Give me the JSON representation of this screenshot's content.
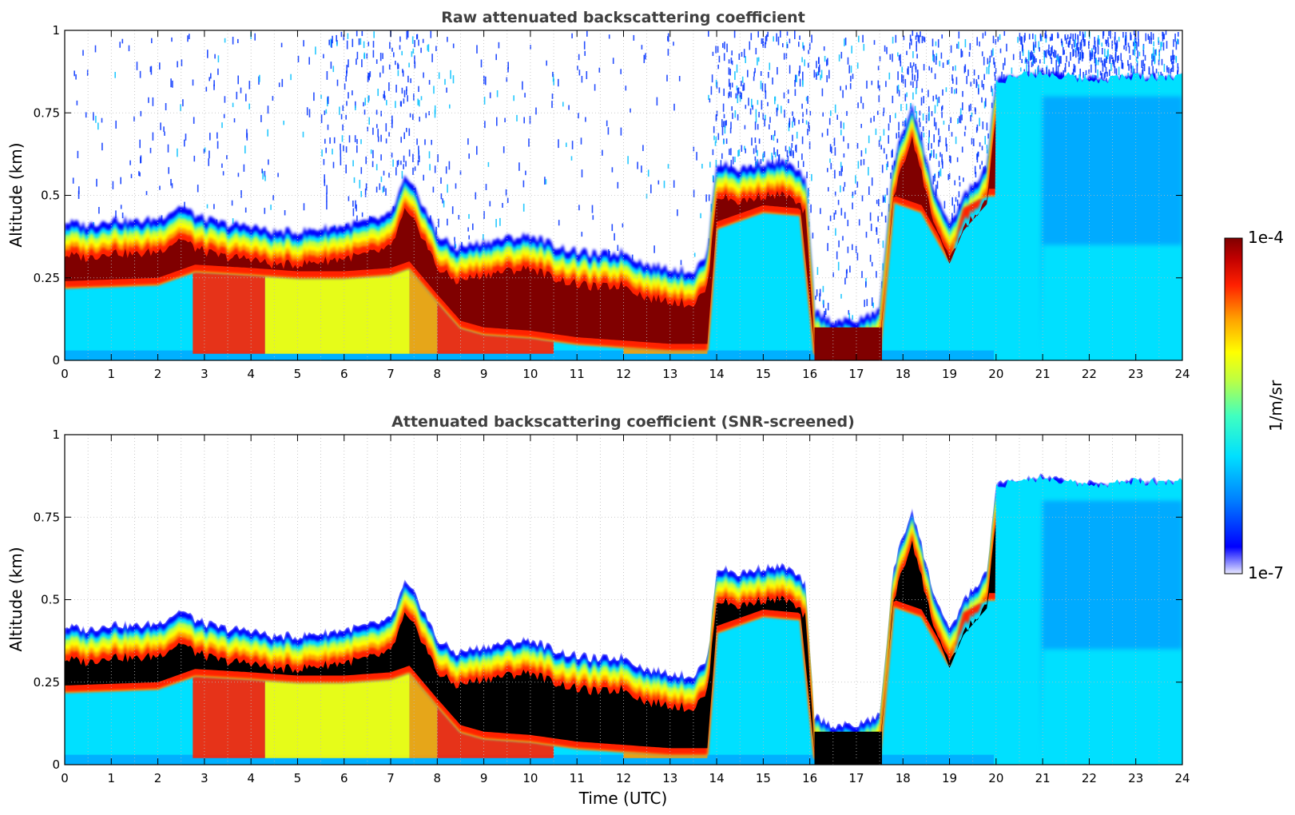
{
  "chart_data": [
    {
      "type": "heatmap",
      "title": "Raw attenuated backscattering coefficient",
      "xlabel": "",
      "ylabel": "Altitude (km)",
      "xlim": [
        0,
        24
      ],
      "ylim": [
        0,
        1
      ],
      "x_ticks": [
        "0",
        "1",
        "2",
        "3",
        "4",
        "5",
        "6",
        "7",
        "8",
        "9",
        "10",
        "11",
        "12",
        "13",
        "14",
        "15",
        "16",
        "17",
        "18",
        "19",
        "20",
        "21",
        "22",
        "23",
        "24"
      ],
      "y_ticks": [
        "0",
        "0.25",
        "0.5",
        "0.75",
        "1"
      ],
      "grid": true,
      "cloud_top_km": [
        [
          0,
          0.42
        ],
        [
          0.5,
          0.41
        ],
        [
          1,
          0.43
        ],
        [
          1.5,
          0.42
        ],
        [
          2,
          0.43
        ],
        [
          2.5,
          0.47
        ],
        [
          2.8,
          0.44
        ],
        [
          3.2,
          0.42
        ],
        [
          3.6,
          0.41
        ],
        [
          4,
          0.41
        ],
        [
          4.4,
          0.39
        ],
        [
          5,
          0.39
        ],
        [
          5.5,
          0.4
        ],
        [
          6,
          0.41
        ],
        [
          6.5,
          0.42
        ],
        [
          7,
          0.44
        ],
        [
          7.3,
          0.55
        ],
        [
          7.6,
          0.5
        ],
        [
          8,
          0.38
        ],
        [
          8.4,
          0.34
        ],
        [
          9,
          0.36
        ],
        [
          9.5,
          0.37
        ],
        [
          10,
          0.38
        ],
        [
          10.5,
          0.35
        ],
        [
          11,
          0.33
        ],
        [
          11.5,
          0.32
        ],
        [
          12,
          0.33
        ],
        [
          12.5,
          0.29
        ],
        [
          13,
          0.28
        ],
        [
          13.5,
          0.27
        ],
        [
          13.8,
          0.32
        ],
        [
          14,
          0.6
        ],
        [
          14.5,
          0.58
        ],
        [
          15,
          0.6
        ],
        [
          15.5,
          0.6
        ],
        [
          15.9,
          0.55
        ],
        [
          16.1,
          0.15
        ],
        [
          16.5,
          0.12
        ],
        [
          17,
          0.12
        ],
        [
          17.5,
          0.15
        ],
        [
          17.8,
          0.6
        ],
        [
          18.2,
          0.78
        ],
        [
          18.6,
          0.55
        ],
        [
          19,
          0.4
        ],
        [
          19.3,
          0.5
        ],
        [
          19.8,
          0.58
        ],
        [
          20,
          0.85
        ],
        [
          21,
          0.87
        ],
        [
          22,
          0.85
        ],
        [
          23,
          0.86
        ],
        [
          24,
          0.86
        ]
      ],
      "cloud_base_km": [
        [
          0,
          0.22
        ],
        [
          2,
          0.23
        ],
        [
          2.8,
          0.27
        ],
        [
          4,
          0.26
        ],
        [
          5,
          0.25
        ],
        [
          6,
          0.25
        ],
        [
          7,
          0.26
        ],
        [
          7.4,
          0.28
        ],
        [
          8,
          0.18
        ],
        [
          8.5,
          0.1
        ],
        [
          9,
          0.08
        ],
        [
          10,
          0.07
        ],
        [
          10.5,
          0.06
        ],
        [
          11,
          0.05
        ],
        [
          12,
          0.04
        ],
        [
          13,
          0.03
        ],
        [
          13.8,
          0.03
        ],
        [
          14,
          0.4
        ],
        [
          15,
          0.45
        ],
        [
          15.8,
          0.44
        ],
        [
          16.1,
          0.02
        ],
        [
          17.5,
          0.02
        ],
        [
          17.8,
          0.48
        ],
        [
          18.4,
          0.45
        ],
        [
          19,
          0.3
        ],
        [
          19.3,
          0.46
        ],
        [
          19.8,
          0.5
        ],
        [
          20,
          0.5
        ]
      ]
    },
    {
      "type": "heatmap",
      "title": "Attenuated backscattering coefficient (SNR-screened)",
      "xlabel": "Time (UTC)",
      "ylabel": "Altitude (km)",
      "xlim": [
        0,
        24
      ],
      "ylim": [
        0,
        1
      ],
      "x_ticks": [
        "0",
        "1",
        "2",
        "3",
        "4",
        "5",
        "6",
        "7",
        "8",
        "9",
        "10",
        "11",
        "12",
        "13",
        "14",
        "15",
        "16",
        "17",
        "18",
        "19",
        "20",
        "21",
        "22",
        "23",
        "24"
      ],
      "y_ticks": [
        "0",
        "0.25",
        "0.5",
        "0.75",
        "1"
      ],
      "grid": true,
      "screening": "values below SNR threshold removed (white); saturated values shown black"
    }
  ],
  "colorbar": {
    "label": "1/m/sr",
    "max_label": "1e-4",
    "min_label": "1e-7",
    "scale": "log",
    "colormap": "jet",
    "colors": [
      "#e8e8ff",
      "#0000ff",
      "#0080ff",
      "#00e0ff",
      "#40ffc0",
      "#c0ff40",
      "#ffff00",
      "#ffa000",
      "#ff2000",
      "#c00000",
      "#800000"
    ]
  }
}
